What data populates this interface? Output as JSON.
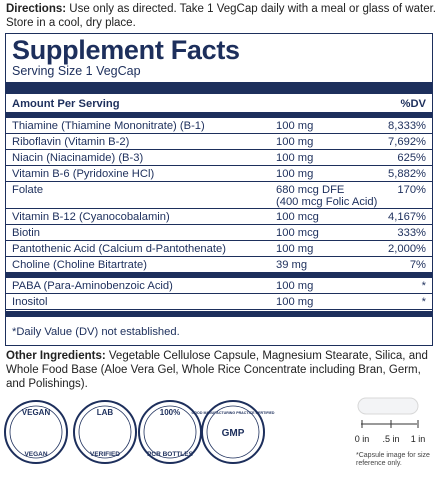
{
  "directions": {
    "label": "Directions:",
    "text": "Use only as directed. Take 1 VegCap daily with a meal or glass of water.",
    "line2": "Store in a cool, dry place."
  },
  "facts": {
    "title": "Supplement Facts",
    "serving": "Serving Size 1 VegCap",
    "header": {
      "amount": "Amount Per Serving",
      "dv": "%DV"
    },
    "rows": [
      {
        "name": "Thiamine (Thiamine Mononitrate) (B-1)",
        "amount": "100 mg",
        "dv": "8,333%"
      },
      {
        "name": "Riboflavin (Vitamin B-2)",
        "amount": "100 mg",
        "dv": "7,692%"
      },
      {
        "name": "Niacin (Niacinamide) (B-3)",
        "amount": "100 mg",
        "dv": "625%"
      },
      {
        "name": "Vitamin B-6 (Pyridoxine HCl)",
        "amount": "100 mg",
        "dv": "5,882%"
      },
      {
        "name": "Folate",
        "amount": "680 mcg DFE",
        "amount_note": "(400 mcg Folic Acid)",
        "dv": "170%"
      },
      {
        "name": "Vitamin B-12 (Cyanocobalamin)",
        "amount": "100 mcg",
        "dv": "4,167%"
      },
      {
        "name": "Biotin",
        "amount": "100 mcg",
        "dv": "333%"
      },
      {
        "name": "Pantothenic Acid (Calcium d-Pantothenate)",
        "amount": "100 mg",
        "dv": "2,000%"
      },
      {
        "name": "Choline (Choline Bitartrate)",
        "amount": "39 mg",
        "dv": "7%"
      }
    ],
    "rows2": [
      {
        "name": "PABA (Para-Aminobenzoic Acid)",
        "amount": "100 mg",
        "dv": "*"
      },
      {
        "name": "Inositol",
        "amount": "100 mg",
        "dv": "*"
      }
    ],
    "footnote": "*Daily Value (DV) not established."
  },
  "other": {
    "label": "Other Ingredients:",
    "text": "Vegetable Cellulose Capsule, Magnesium Stearate, Silica, and Whole Food Base (Aloe Vera Gel, Whole Rice Concentrate including Bran, Germ, and Polishings)."
  },
  "badges": [
    {
      "top": "VEGAN",
      "bottom": "VEGAN"
    },
    {
      "top": "LAB",
      "bottom": "VERIFIED"
    },
    {
      "top": "100%",
      "bottom": "PCR BOTTLES"
    },
    {
      "top": "GMP",
      "bottom": "GOOD MANUFACTURING PRACTICE CERTIFIED"
    }
  ],
  "capsule": {
    "scale": [
      "0 in",
      ".5 in",
      "1 in"
    ],
    "note": "*Capsule image for size reference only."
  }
}
